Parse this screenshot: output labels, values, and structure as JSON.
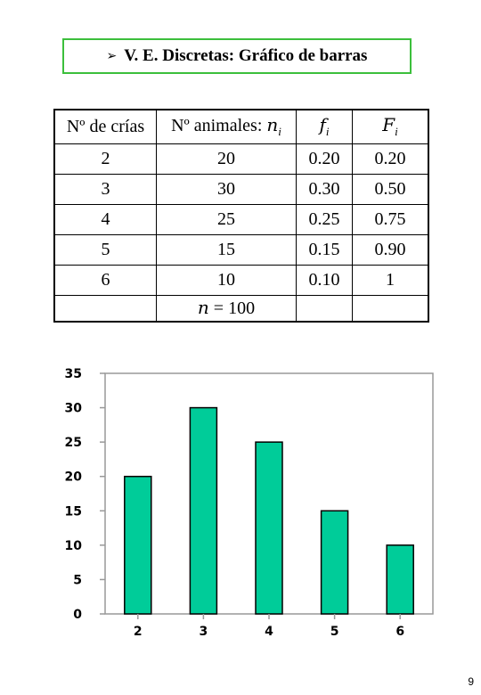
{
  "title": {
    "arrow": "➢",
    "text": "V. E. Discretas: Gráfico de barras"
  },
  "table": {
    "headers": {
      "col1": "Nº de crías",
      "col2_main": "Nº animales:",
      "col2_var": "n",
      "col2_sub": "i",
      "col3_var": "f",
      "col3_sub": "i",
      "col4_var": "F",
      "col4_sub": "i"
    },
    "rows": [
      {
        "crias": "2",
        "animales": "20",
        "fi": "0.20",
        "Fi": "0.20"
      },
      {
        "crias": "3",
        "animales": "30",
        "fi": "0.30",
        "Fi": "0.50"
      },
      {
        "crias": "4",
        "animales": "25",
        "fi": "0.25",
        "Fi": "0.75"
      },
      {
        "crias": "5",
        "animales": "15",
        "fi": "0.15",
        "Fi": "0.90"
      },
      {
        "crias": "6",
        "animales": "10",
        "fi": "0.10",
        "Fi": "1"
      }
    ],
    "total": {
      "var": "n",
      "text": " = 100"
    }
  },
  "chart_data": {
    "type": "bar",
    "categories": [
      "2",
      "3",
      "4",
      "5",
      "6"
    ],
    "values": [
      20,
      30,
      25,
      15,
      10
    ],
    "ylim": [
      0,
      35
    ],
    "yticks": [
      "0",
      "5",
      "10",
      "15",
      "20",
      "25",
      "30",
      "35"
    ],
    "bar_color": "#00cc99",
    "grid": false
  },
  "page_number": "9"
}
